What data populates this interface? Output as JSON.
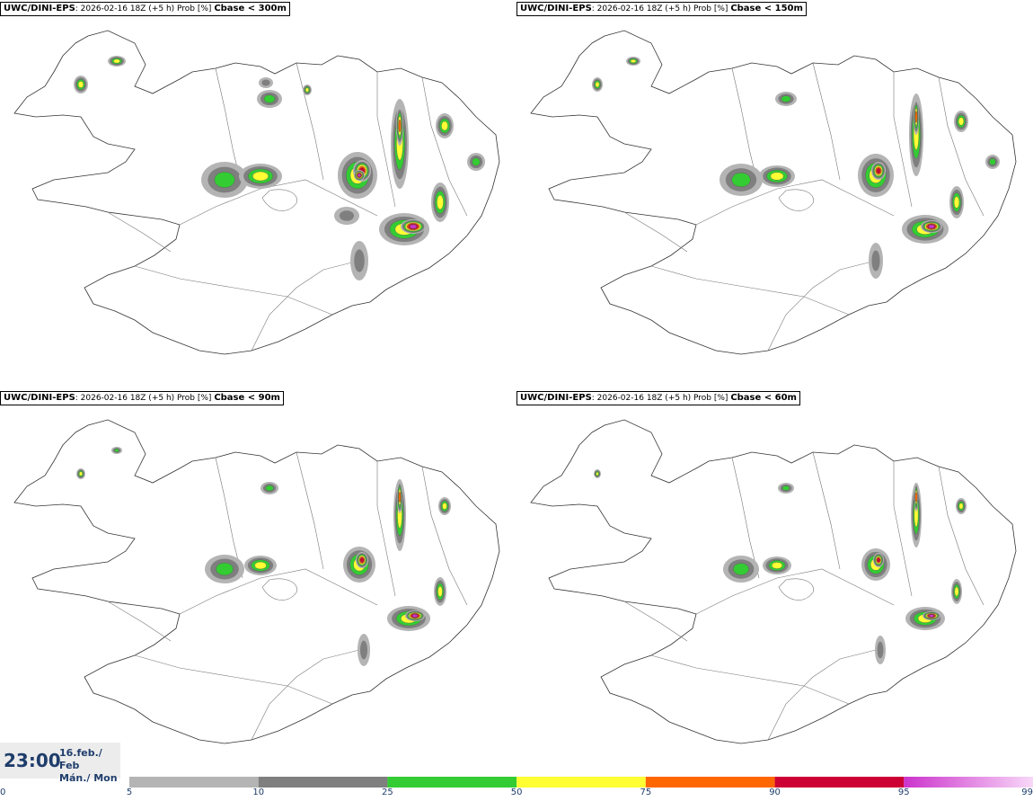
{
  "panels": [
    {
      "model": "UWC/DINI-EPS",
      "run": ": 2026-02-16 18Z (+5 h) Prob [%] ",
      "variable": "Cbase < 300m"
    },
    {
      "model": "UWC/DINI-EPS",
      "run": ": 2026-02-16 18Z (+5 h) Prob [%] ",
      "variable": "Cbase < 150m"
    },
    {
      "model": "UWC/DINI-EPS",
      "run": ": 2026-02-16 18Z (+5 h) Prob [%] ",
      "variable": "Cbase < 90m"
    },
    {
      "model": "UWC/DINI-EPS",
      "run": ": 2026-02-16 18Z (+5 h) Prob [%] ",
      "variable": "Cbase < 60m"
    }
  ],
  "time": {
    "clock": "23:00",
    "date_line": "16.feb./ Feb",
    "day_line": "Mán./ Mon"
  },
  "legend": {
    "bins": [
      {
        "from": 5,
        "to": 10,
        "color": "#b4b4b4"
      },
      {
        "from": 10,
        "to": 25,
        "color": "#7f7f7f"
      },
      {
        "from": 25,
        "to": 50,
        "color": "#33cc33"
      },
      {
        "from": 50,
        "to": 75,
        "color": "#ffff33"
      },
      {
        "from": 75,
        "to": 90,
        "color": "#ff6600"
      },
      {
        "from": 90,
        "to": 95,
        "color": "#cc0033"
      },
      {
        "from": 95,
        "to": 99,
        "color": "#cc33cc"
      }
    ],
    "ticks": [
      "0",
      "5",
      "10",
      "25",
      "50",
      "75",
      "90",
      "95",
      "99"
    ]
  }
}
